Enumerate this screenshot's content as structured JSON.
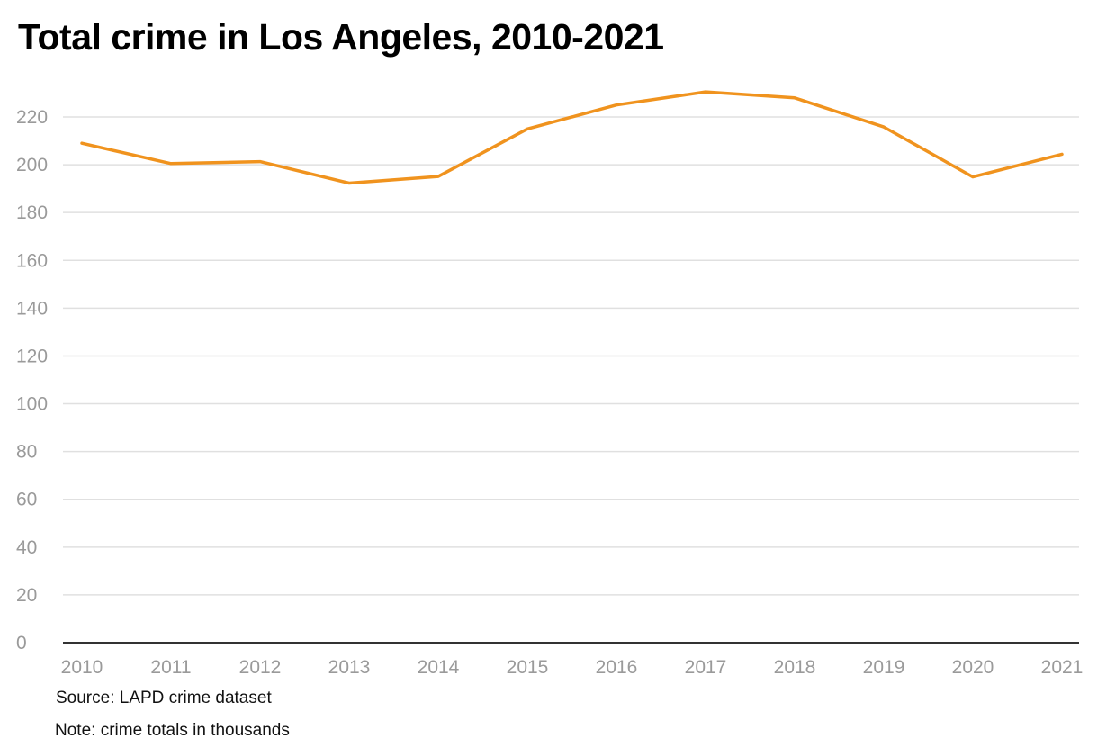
{
  "chart_data": {
    "type": "line",
    "title": "Total crime in Los Angeles, 2010-2021",
    "x": [
      "2010",
      "2011",
      "2012",
      "2013",
      "2014",
      "2015",
      "2016",
      "2017",
      "2018",
      "2019",
      "2020",
      "2021"
    ],
    "series": [
      {
        "values": [
          209,
          200.5,
          201.3,
          192.3,
          195.1,
          215,
          225,
          230.5,
          228,
          215.8,
          194.9,
          204.4
        ]
      }
    ],
    "yticks": [
      "0",
      "20",
      "40",
      "60",
      "80",
      "100",
      "120",
      "140",
      "160",
      "180",
      "200",
      "220"
    ],
    "ylim": [
      0,
      230
    ],
    "grid": true,
    "legend": "none",
    "xlabel": "",
    "ylabel": "",
    "line_color": "#F0931E",
    "grid_color": "#E0E0E0",
    "axis_color": "#333333",
    "tick_color": "#9A9A9A"
  },
  "source": "Source: LAPD crime dataset",
  "note": "Note: crime totals in thousands"
}
